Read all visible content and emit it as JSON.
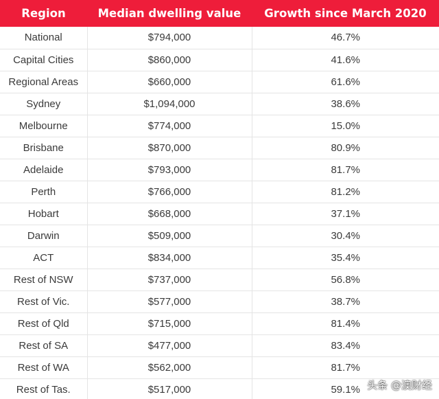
{
  "colors": {
    "header_bg": "#ee1d3a",
    "header_text": "#ffffff",
    "cell_text": "#3a3a3a",
    "grid_line": "#e4e4e4"
  },
  "table": {
    "headers": [
      "Region",
      "Median dwelling value",
      "Growth since March 2020"
    ],
    "rows": [
      [
        "National",
        "$794,000",
        "46.7%"
      ],
      [
        "Capital Cities",
        "$860,000",
        "41.6%"
      ],
      [
        "Regional Areas",
        "$660,000",
        "61.6%"
      ],
      [
        "Sydney",
        "$1,094,000",
        "38.6%"
      ],
      [
        "Melbourne",
        "$774,000",
        "15.0%"
      ],
      [
        "Brisbane",
        "$870,000",
        "80.9%"
      ],
      [
        "Adelaide",
        "$793,000",
        "81.7%"
      ],
      [
        "Perth",
        "$766,000",
        "81.2%"
      ],
      [
        "Hobart",
        "$668,000",
        "37.1%"
      ],
      [
        "Darwin",
        "$509,000",
        "30.4%"
      ],
      [
        "ACT",
        "$834,000",
        "35.4%"
      ],
      [
        "Rest of NSW",
        "$737,000",
        "56.8%"
      ],
      [
        "Rest of Vic.",
        "$577,000",
        "38.7%"
      ],
      [
        "Rest of Qld",
        "$715,000",
        "81.4%"
      ],
      [
        "Rest of SA",
        "$477,000",
        "83.4%"
      ],
      [
        "Rest of WA",
        "$562,000",
        "81.7%"
      ],
      [
        "Rest of Tas.",
        "$517,000",
        "59.1%"
      ]
    ]
  },
  "watermark": {
    "text": "头条 @澳财经"
  }
}
